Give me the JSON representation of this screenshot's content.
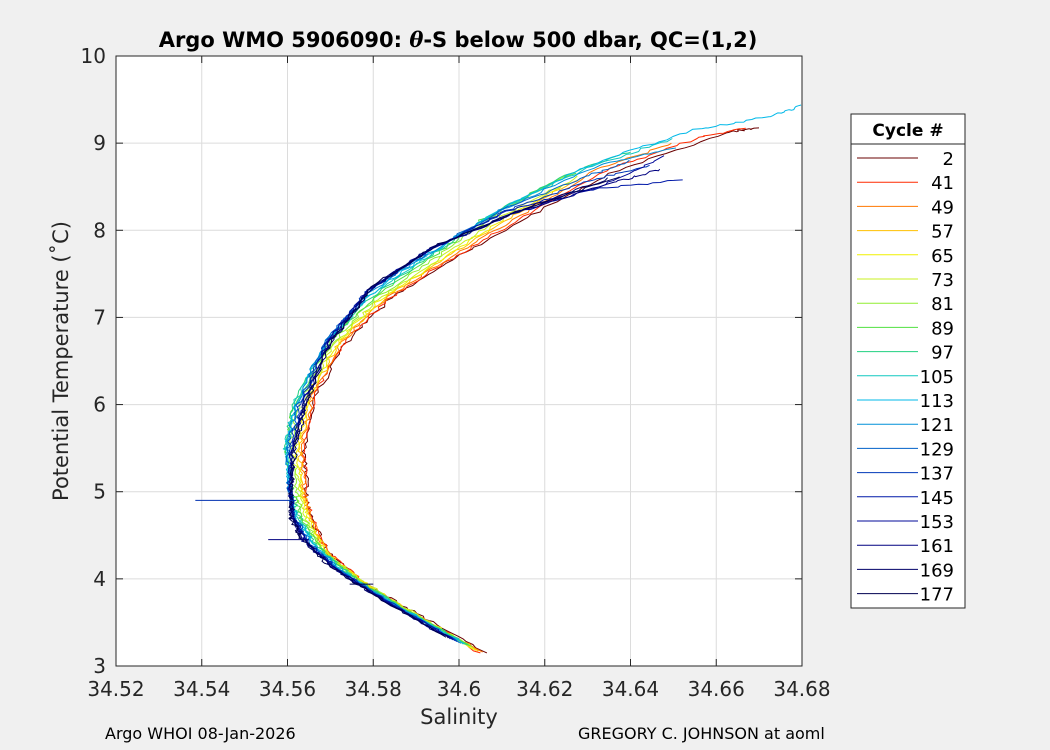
{
  "chart_data": {
    "type": "line",
    "title": "Argo WMO 5906090: θ-S below 500 dbar,  QC=(1,2)",
    "title_parts": [
      "Argo WMO 5906090: ",
      "θ",
      "-S below 500 dbar,  QC=(1,2)"
    ],
    "xlabel": "Salinity",
    "ylabel": "Potential Temperature (˚C)",
    "xlim": [
      34.52,
      34.68
    ],
    "ylim": [
      3,
      10
    ],
    "xticks": [
      34.52,
      34.54,
      34.56,
      34.58,
      34.6,
      34.62,
      34.64,
      34.66,
      34.68
    ],
    "xtick_labels": [
      "34.52",
      "34.54",
      "34.56",
      "34.58",
      "34.6",
      "34.62",
      "34.64",
      "34.66",
      "34.68"
    ],
    "yticks": [
      3,
      4,
      5,
      6,
      7,
      8,
      9,
      10
    ],
    "ytick_labels": [
      "3",
      "4",
      "5",
      "6",
      "7",
      "8",
      "9",
      "10"
    ],
    "grid": true,
    "legend_position": "outside-right",
    "legend_title": "Cycle #",
    "series": [
      {
        "name": "2",
        "color": "#6a0000",
        "values": [
          [
            34.6065,
            3.15
          ],
          [
            34.59,
            3.6
          ],
          [
            34.578,
            3.95
          ],
          [
            34.5695,
            4.3
          ],
          [
            34.5655,
            4.7
          ],
          [
            34.5645,
            5.0
          ],
          [
            34.5638,
            5.5
          ],
          [
            34.5665,
            6.1
          ],
          [
            34.5735,
            6.7
          ],
          [
            34.5835,
            7.2
          ],
          [
            34.598,
            7.65
          ],
          [
            34.614,
            8.1
          ],
          [
            34.635,
            8.65
          ],
          [
            34.662,
            9.12
          ],
          [
            34.67,
            9.18
          ]
        ]
      },
      {
        "name": "41",
        "color": "#ff2a00",
        "values": [
          [
            34.605,
            3.15
          ],
          [
            34.5895,
            3.6
          ],
          [
            34.578,
            3.95
          ],
          [
            34.5695,
            4.3
          ],
          [
            34.5656,
            4.7
          ],
          [
            34.5643,
            5.0
          ],
          [
            34.5636,
            5.5
          ],
          [
            34.5662,
            6.1
          ],
          [
            34.573,
            6.7
          ],
          [
            34.583,
            7.2
          ],
          [
            34.5975,
            7.65
          ],
          [
            34.6138,
            8.12
          ],
          [
            34.634,
            8.68
          ],
          [
            34.655,
            9.05
          ],
          [
            34.667,
            9.18
          ]
        ]
      },
      {
        "name": "49",
        "color": "#ff7700",
        "values": [
          [
            34.6055,
            3.16
          ],
          [
            34.5895,
            3.6
          ],
          [
            34.5778,
            3.95
          ],
          [
            34.5693,
            4.3
          ],
          [
            34.5653,
            4.7
          ],
          [
            34.564,
            5.0
          ],
          [
            34.5632,
            5.5
          ],
          [
            34.5658,
            6.1
          ],
          [
            34.5725,
            6.7
          ],
          [
            34.5825,
            7.2
          ],
          [
            34.597,
            7.66
          ],
          [
            34.613,
            8.13
          ],
          [
            34.632,
            8.7
          ],
          [
            34.65,
            9.0
          ]
        ]
      },
      {
        "name": "57",
        "color": "#ffc000",
        "values": [
          [
            34.6045,
            3.17
          ],
          [
            34.589,
            3.61
          ],
          [
            34.5775,
            3.96
          ],
          [
            34.569,
            4.31
          ],
          [
            34.565,
            4.7
          ],
          [
            34.5636,
            5.0
          ],
          [
            34.5628,
            5.5
          ],
          [
            34.5654,
            6.1
          ],
          [
            34.572,
            6.7
          ],
          [
            34.582,
            7.2
          ],
          [
            34.5965,
            7.67
          ],
          [
            34.612,
            8.14
          ],
          [
            34.628,
            8.6
          ]
        ]
      },
      {
        "name": "65",
        "color": "#f0f000",
        "values": [
          [
            34.604,
            3.18
          ],
          [
            34.5888,
            3.62
          ],
          [
            34.5772,
            3.97
          ],
          [
            34.5688,
            4.32
          ],
          [
            34.5646,
            4.7
          ],
          [
            34.5632,
            5.0
          ],
          [
            34.5622,
            5.5
          ],
          [
            34.5648,
            6.1
          ],
          [
            34.5715,
            6.7
          ],
          [
            34.5815,
            7.2
          ],
          [
            34.596,
            7.67
          ],
          [
            34.611,
            8.15
          ],
          [
            34.626,
            8.55
          ]
        ]
      },
      {
        "name": "73",
        "color": "#c8f020",
        "values": [
          [
            34.6035,
            3.2
          ],
          [
            34.5885,
            3.63
          ],
          [
            34.577,
            3.98
          ],
          [
            34.5684,
            4.33
          ],
          [
            34.5642,
            4.7
          ],
          [
            34.5626,
            5.0
          ],
          [
            34.5615,
            5.5
          ],
          [
            34.5642,
            6.1
          ],
          [
            34.571,
            6.7
          ],
          [
            34.581,
            7.2
          ],
          [
            34.595,
            7.66
          ],
          [
            34.61,
            8.16
          ],
          [
            34.628,
            8.62
          ]
        ]
      },
      {
        "name": "81",
        "color": "#90ee30",
        "values": [
          [
            34.603,
            3.22
          ],
          [
            34.588,
            3.64
          ],
          [
            34.5765,
            3.99
          ],
          [
            34.568,
            4.34
          ],
          [
            34.5638,
            4.7
          ],
          [
            34.562,
            5.0
          ],
          [
            34.5607,
            5.5
          ],
          [
            34.5625,
            6.0
          ],
          [
            34.5702,
            6.7
          ],
          [
            34.5805,
            7.22
          ],
          [
            34.5945,
            7.68
          ],
          [
            34.608,
            8.17
          ],
          [
            34.626,
            8.65
          ]
        ]
      },
      {
        "name": "89",
        "color": "#50e040",
        "values": [
          [
            34.6025,
            3.23
          ],
          [
            34.5875,
            3.65
          ],
          [
            34.576,
            4.0
          ],
          [
            34.5675,
            4.35
          ],
          [
            34.5632,
            4.7
          ],
          [
            34.5612,
            5.0
          ],
          [
            34.5598,
            5.5
          ],
          [
            34.5615,
            6.0
          ],
          [
            34.5695,
            6.7
          ],
          [
            34.58,
            7.23
          ],
          [
            34.594,
            7.7
          ],
          [
            34.607,
            8.18
          ],
          [
            34.627,
            8.66
          ]
        ]
      },
      {
        "name": "97",
        "color": "#20d080",
        "values": [
          [
            34.602,
            3.24
          ],
          [
            34.587,
            3.66
          ],
          [
            34.5755,
            4.01
          ],
          [
            34.567,
            4.36
          ],
          [
            34.5628,
            4.7
          ],
          [
            34.5608,
            5.0
          ],
          [
            34.5595,
            5.5
          ],
          [
            34.5612,
            6.0
          ],
          [
            34.569,
            6.7
          ],
          [
            34.5795,
            7.24
          ],
          [
            34.5935,
            7.71
          ],
          [
            34.608,
            8.2
          ],
          [
            34.628,
            8.7
          ],
          [
            34.64,
            8.9
          ]
        ]
      },
      {
        "name": "105",
        "color": "#10c8c0",
        "values": [
          [
            34.6015,
            3.25
          ],
          [
            34.5865,
            3.67
          ],
          [
            34.575,
            4.02
          ],
          [
            34.5665,
            4.37
          ],
          [
            34.5625,
            4.7
          ],
          [
            34.5606,
            5.0
          ],
          [
            34.5596,
            5.5
          ],
          [
            34.5615,
            6.0
          ],
          [
            34.5688,
            6.7
          ],
          [
            34.5792,
            7.25
          ],
          [
            34.5932,
            7.72
          ],
          [
            34.609,
            8.22
          ],
          [
            34.63,
            8.72
          ],
          [
            34.65,
            9.05
          ]
        ]
      },
      {
        "name": "113",
        "color": "#00b8e8",
        "values": [
          [
            34.601,
            3.25
          ],
          [
            34.586,
            3.68
          ],
          [
            34.5745,
            4.03
          ],
          [
            34.566,
            4.38
          ],
          [
            34.5622,
            4.7
          ],
          [
            34.5605,
            5.0
          ],
          [
            34.5598,
            5.5
          ],
          [
            34.5618,
            6.0
          ],
          [
            34.5686,
            6.7
          ],
          [
            34.579,
            7.26
          ],
          [
            34.593,
            7.73
          ],
          [
            34.61,
            8.25
          ],
          [
            34.632,
            8.78
          ],
          [
            34.655,
            9.15
          ],
          [
            34.672,
            9.3
          ],
          [
            34.68,
            9.43
          ]
        ]
      },
      {
        "name": "121",
        "color": "#0090d8",
        "values": [
          [
            34.6005,
            3.26
          ],
          [
            34.5855,
            3.69
          ],
          [
            34.574,
            4.04
          ],
          [
            34.5656,
            4.39
          ],
          [
            34.562,
            4.7
          ],
          [
            34.5604,
            5.0
          ],
          [
            34.56,
            5.5
          ],
          [
            34.562,
            6.0
          ],
          [
            34.5685,
            6.7
          ],
          [
            34.5788,
            7.27
          ],
          [
            34.593,
            7.74
          ],
          [
            34.611,
            8.26
          ],
          [
            34.633,
            8.75
          ],
          [
            34.65,
            8.95
          ]
        ]
      },
      {
        "name": "129",
        "color": "#0060c8",
        "values": [
          [
            34.6,
            3.27
          ],
          [
            34.585,
            3.7
          ],
          [
            34.5735,
            4.05
          ],
          [
            34.5652,
            4.4
          ],
          [
            34.5618,
            4.7
          ],
          [
            34.5604,
            5.0
          ],
          [
            34.5603,
            5.5
          ],
          [
            34.5625,
            6.0
          ],
          [
            34.5685,
            6.7
          ],
          [
            34.5785,
            7.28
          ],
          [
            34.5928,
            7.75
          ],
          [
            34.61,
            8.24
          ],
          [
            34.63,
            8.62
          ],
          [
            34.64,
            8.8
          ]
        ]
      },
      {
        "name": "137",
        "color": "#0038b8",
        "values": [
          [
            34.5995,
            3.28
          ],
          [
            34.5845,
            3.71
          ],
          [
            34.573,
            4.06
          ],
          [
            34.5648,
            4.41
          ],
          [
            34.5616,
            4.7
          ],
          [
            34.5605,
            5.0
          ],
          [
            34.5606,
            5.5
          ],
          [
            34.563,
            6.0
          ],
          [
            34.5688,
            6.7
          ],
          [
            34.5786,
            7.3
          ],
          [
            34.5928,
            7.76
          ],
          [
            34.611,
            8.22
          ],
          [
            34.629,
            8.55
          ],
          [
            34.645,
            8.75
          ]
        ]
      },
      {
        "name": "145",
        "color": "#0018a8",
        "values": [
          [
            34.599,
            3.29
          ],
          [
            34.584,
            3.72
          ],
          [
            34.5725,
            4.07
          ],
          [
            34.5645,
            4.42
          ],
          [
            34.5615,
            4.7
          ],
          [
            34.5606,
            5.0
          ],
          [
            34.561,
            5.5
          ],
          [
            34.5635,
            6.0
          ],
          [
            34.569,
            6.7
          ],
          [
            34.5788,
            7.31
          ],
          [
            34.593,
            7.77
          ],
          [
            34.61,
            8.2
          ],
          [
            34.628,
            8.45
          ],
          [
            34.652,
            8.58
          ]
        ]
      },
      {
        "name": "153",
        "color": "#000898",
        "values": [
          [
            34.5985,
            3.3
          ],
          [
            34.5835,
            3.73
          ],
          [
            34.572,
            4.08
          ],
          [
            34.5642,
            4.43
          ],
          [
            34.5614,
            4.7
          ],
          [
            34.5607,
            5.0
          ],
          [
            34.5612,
            5.5
          ],
          [
            34.5638,
            6.0
          ],
          [
            34.5692,
            6.7
          ],
          [
            34.579,
            7.32
          ],
          [
            34.5932,
            7.78
          ],
          [
            34.612,
            8.18
          ],
          [
            34.633,
            8.5
          ],
          [
            34.648,
            8.85
          ]
        ]
      },
      {
        "name": "161",
        "color": "#000080",
        "values": [
          [
            34.598,
            3.31
          ],
          [
            34.583,
            3.74
          ],
          [
            34.5716,
            4.09
          ],
          [
            34.5638,
            4.44
          ],
          [
            34.5612,
            4.7
          ],
          [
            34.5608,
            5.0
          ],
          [
            34.5614,
            5.5
          ],
          [
            34.564,
            6.0
          ],
          [
            34.5695,
            6.7
          ],
          [
            34.5792,
            7.33
          ],
          [
            34.5935,
            7.79
          ],
          [
            34.613,
            8.2
          ],
          [
            34.636,
            8.55
          ],
          [
            34.647,
            8.7
          ]
        ]
      },
      {
        "name": "169",
        "color": "#000068",
        "values": [
          [
            34.5975,
            3.32
          ],
          [
            34.5825,
            3.75
          ],
          [
            34.5712,
            4.1
          ],
          [
            34.5635,
            4.45
          ],
          [
            34.561,
            4.7
          ],
          [
            34.5608,
            5.0
          ],
          [
            34.5616,
            5.5
          ],
          [
            34.5642,
            6.0
          ],
          [
            34.5698,
            6.7
          ],
          [
            34.5795,
            7.34
          ],
          [
            34.5938,
            7.8
          ],
          [
            34.614,
            8.22
          ],
          [
            34.635,
            8.6
          ]
        ]
      },
      {
        "name": "177",
        "color": "#000050",
        "values": [
          [
            34.597,
            3.33
          ],
          [
            34.582,
            3.76
          ],
          [
            34.5708,
            4.11
          ],
          [
            34.5632,
            4.46
          ],
          [
            34.5608,
            4.7
          ],
          [
            34.5608,
            5.0
          ],
          [
            34.5618,
            5.5
          ],
          [
            34.5645,
            6.0
          ],
          [
            34.57,
            6.7
          ],
          [
            34.5798,
            7.35
          ],
          [
            34.594,
            7.81
          ],
          [
            34.615,
            8.24
          ],
          [
            34.638,
            8.62
          ]
        ]
      }
    ],
    "spikes": [
      {
        "color": "#0030b0",
        "values": [
          [
            34.5385,
            4.9
          ],
          [
            34.562,
            4.9
          ]
        ]
      },
      {
        "color": "#000080",
        "values": [
          [
            34.5555,
            4.45
          ],
          [
            34.565,
            4.45
          ]
        ]
      },
      {
        "color": "#000050",
        "values": [
          [
            34.5745,
            3.94
          ],
          [
            34.58,
            3.94
          ]
        ]
      }
    ]
  },
  "footer": {
    "left": "Argo WHOI 08-Jan-2026",
    "right": "GREGORY C. JOHNSON at aoml"
  }
}
